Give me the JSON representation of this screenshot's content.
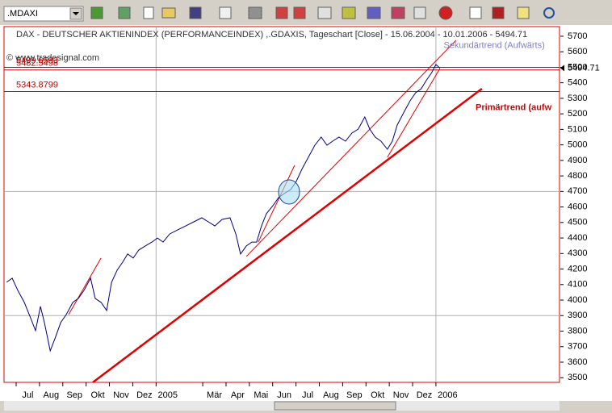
{
  "toolbar": {
    "symbol": ".MDAXI"
  },
  "chart_data": {
    "type": "line",
    "title": "DAX - DEUTSCHER AKTIENINDEX (PERFORMANCEINDEX) ,.GDAXIS, Tageschart [Close] - 15.06.2004 - 10.01.2006 - 5494.71",
    "watermark": "© www.tradesignal.com",
    "xlim": [
      0.48,
      24.3
    ],
    "ylim": [
      3470,
      5762
    ],
    "yticks": [
      3500,
      3600,
      3700,
      3800,
      3900,
      4000,
      4100,
      4200,
      4300,
      4400,
      4500,
      4600,
      4700,
      4800,
      4900,
      5000,
      5100,
      5200,
      5300,
      5400,
      5500,
      5600,
      5700
    ],
    "xticks": [
      {
        "value": 1,
        "label": "Jul"
      },
      {
        "value": 2,
        "label": "Aug"
      },
      {
        "value": 3,
        "label": "Sep"
      },
      {
        "value": 4,
        "label": "Okt"
      },
      {
        "value": 5,
        "label": "Nov"
      },
      {
        "value": 6,
        "label": "Dez"
      },
      {
        "value": 7,
        "label": "2005"
      },
      {
        "value": 9,
        "label": "Mär"
      },
      {
        "value": 10,
        "label": "Apr"
      },
      {
        "value": 11,
        "label": "Mai"
      },
      {
        "value": 12,
        "label": "Jun"
      },
      {
        "value": 13,
        "label": "Jul"
      },
      {
        "value": 14,
        "label": "Aug"
      },
      {
        "value": 15,
        "label": "Sep"
      },
      {
        "value": 16,
        "label": "Okt"
      },
      {
        "value": 17,
        "label": "Nov"
      },
      {
        "value": 18,
        "label": "Dez"
      },
      {
        "value": 19,
        "label": "2006"
      }
    ],
    "ygrid": [
      3900,
      4700
    ],
    "xgrid": [
      7,
      19
    ],
    "series": [
      {
        "color": "#000080",
        "x": [
          0.59,
          0.83,
          1.07,
          1.35,
          1.63,
          1.83,
          2.04,
          2.21,
          2.46,
          2.66,
          2.91,
          3.15,
          3.43,
          3.67,
          3.91,
          4.19,
          4.39,
          4.64,
          4.88,
          5.09,
          5.33,
          5.57,
          5.78,
          6.02,
          6.26,
          6.54,
          6.82,
          7.06,
          7.3,
          7.58,
          7.92,
          8.27,
          8.62,
          8.96,
          9.24,
          9.52,
          9.83,
          10.17,
          10.42,
          10.62,
          10.87,
          11.11,
          11.31,
          11.52,
          11.73,
          12.01,
          12.25,
          12.49,
          12.77,
          13.01,
          13.25,
          13.53,
          13.81,
          14.08,
          14.33,
          14.57,
          14.84,
          15.12,
          15.4,
          15.67,
          15.95,
          16.16,
          16.4,
          16.64,
          16.92,
          17.13,
          17.34,
          17.61,
          17.89,
          18.13,
          18.37,
          18.58,
          18.82,
          19.0,
          19.17
        ],
        "values": [
          4115,
          4141,
          4063,
          3985,
          3881,
          3803,
          3959,
          3855,
          3673,
          3751,
          3855,
          3907,
          3985,
          4011,
          4063,
          4141,
          4011,
          3985,
          3933,
          4115,
          4193,
          4245,
          4297,
          4271,
          4323,
          4349,
          4374,
          4400,
          4374,
          4426,
          4452,
          4478,
          4504,
          4530,
          4504,
          4478,
          4520,
          4530,
          4426,
          4297,
          4349,
          4374,
          4374,
          4478,
          4556,
          4608,
          4660,
          4686,
          4712,
          4764,
          4842,
          4920,
          4998,
          5050,
          4998,
          5024,
          5050,
          5024,
          5076,
          5102,
          5180,
          5102,
          5050,
          5024,
          4972,
          5024,
          5128,
          5206,
          5284,
          5336,
          5362,
          5414,
          5466,
          5518,
          5495
        ]
      }
    ],
    "last_value": {
      "value": 5494.71,
      "label": "5494.71"
    },
    "hlines": [
      {
        "value": 5499.6593,
        "label": "5499.6593"
      },
      {
        "value": 5482.5498,
        "label": "5482.5498"
      },
      {
        "value": 5343.8799,
        "label": "5343.8799"
      }
    ],
    "trendlines": [
      {
        "x": [
          4.29,
          20.97
        ],
        "y": [
          3470,
          5362
        ],
        "color": "#e00000",
        "width": 2.5
      },
      {
        "x": [
          10.87,
          19.86
        ],
        "y": [
          4281,
          5674
        ],
        "color": "#e00000",
        "width": 1
      },
      {
        "x": [
          3.25,
          4.64
        ],
        "y": [
          3907,
          4271
        ],
        "color": "#e00000",
        "width": 1
      },
      {
        "x": [
          11.38,
          12.94
        ],
        "y": [
          4374,
          4868
        ],
        "color": "#e00000",
        "width": 1
      },
      {
        "x": [
          16.92,
          19.17
        ],
        "y": [
          4920,
          5492
        ],
        "color": "#e00000",
        "width": 1
      }
    ],
    "annotations": [
      {
        "text": "Sekundärtrend (Aufwärts)",
        "x": 19.33,
        "y": 5640,
        "color": "#8080c0",
        "bold": false
      },
      {
        "text": "Primärtrend (aufw",
        "x": 20.7,
        "y": 5240,
        "color": "#d00000",
        "bold": true
      }
    ]
  }
}
